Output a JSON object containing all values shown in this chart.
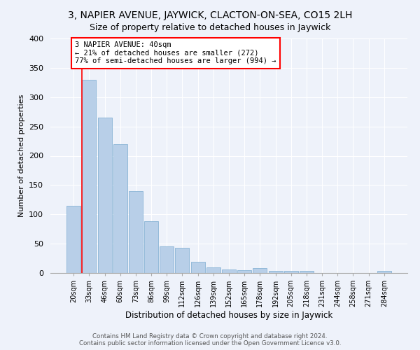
{
  "title": "3, NAPIER AVENUE, JAYWICK, CLACTON-ON-SEA, CO15 2LH",
  "subtitle": "Size of property relative to detached houses in Jaywick",
  "xlabel": "Distribution of detached houses by size in Jaywick",
  "ylabel": "Number of detached properties",
  "categories": [
    "20sqm",
    "33sqm",
    "46sqm",
    "60sqm",
    "73sqm",
    "86sqm",
    "99sqm",
    "112sqm",
    "126sqm",
    "139sqm",
    "152sqm",
    "165sqm",
    "178sqm",
    "192sqm",
    "205sqm",
    "218sqm",
    "231sqm",
    "244sqm",
    "258sqm",
    "271sqm",
    "284sqm"
  ],
  "values": [
    115,
    330,
    265,
    220,
    140,
    88,
    45,
    43,
    19,
    10,
    6,
    5,
    8,
    4,
    4,
    4,
    0,
    0,
    0,
    0,
    4
  ],
  "bar_color": "#b8cfe8",
  "bar_edge_color": "#7aaad0",
  "red_line_x": 0.575,
  "annotation_line1": "3 NAPIER AVENUE: 40sqm",
  "annotation_line2": "← 21% of detached houses are smaller (272)",
  "annotation_line3": "77% of semi-detached houses are larger (994) →",
  "annotation_box_color": "white",
  "annotation_box_edge_color": "red",
  "red_line_color": "red",
  "footer": "Contains HM Land Registry data © Crown copyright and database right 2024.\nContains public sector information licensed under the Open Government Licence v3.0.",
  "bg_color": "#eef2fa",
  "ylim": [
    0,
    400
  ],
  "yticks": [
    0,
    50,
    100,
    150,
    200,
    250,
    300,
    350,
    400
  ],
  "title_fontsize": 10,
  "subtitle_fontsize": 9,
  "bar_width": 0.9
}
